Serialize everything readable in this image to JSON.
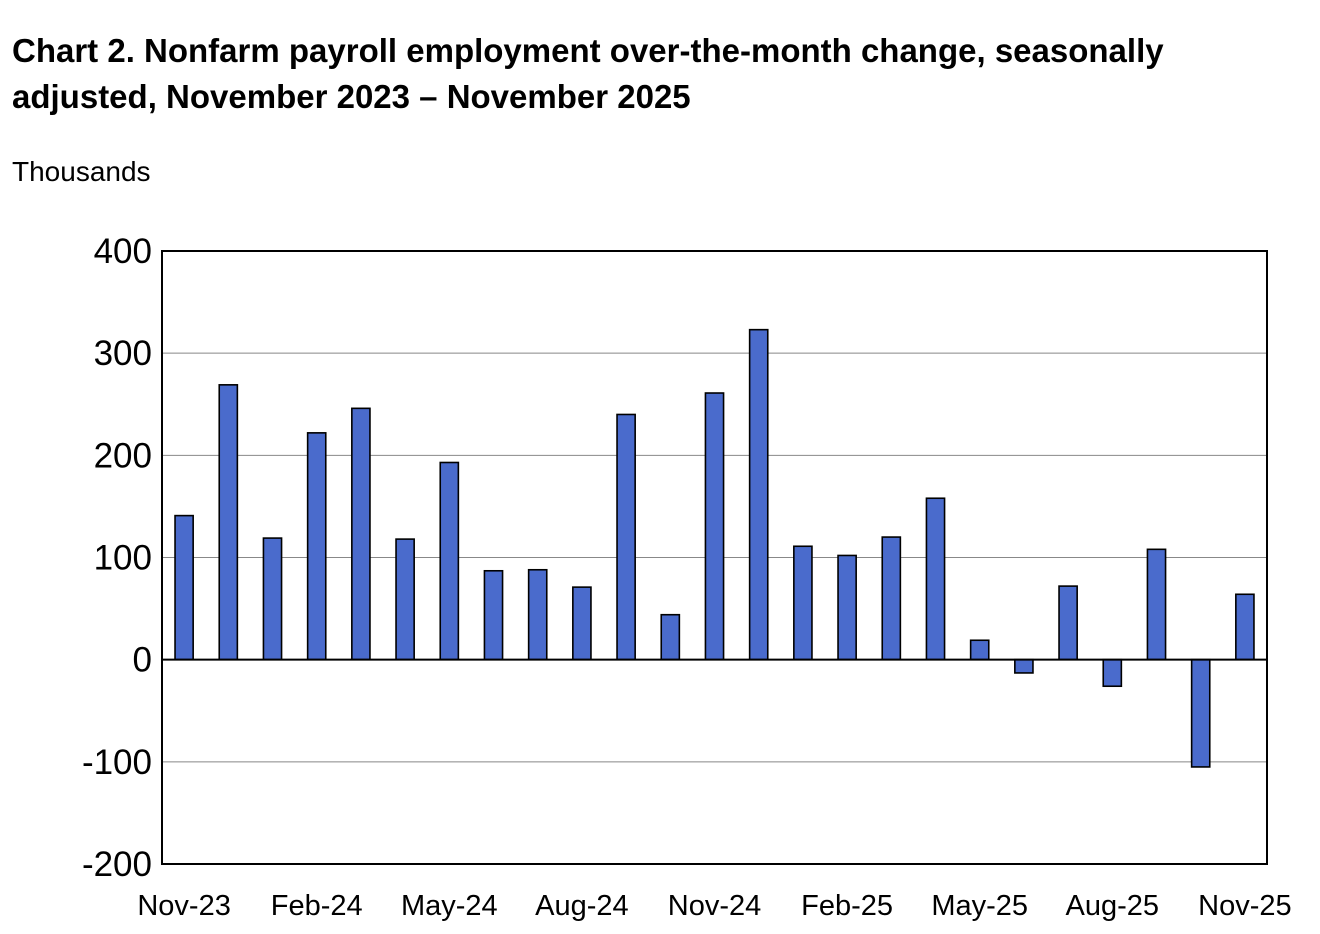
{
  "chart_data": {
    "type": "bar",
    "title": "Chart 2. Nonfarm payroll employment over-the-month change, seasonally adjusted, November 2023 – November 2025",
    "ylabel": "Thousands",
    "xlabel": "",
    "ylim": [
      -200,
      400
    ],
    "yticks": [
      400,
      300,
      200,
      100,
      0,
      -100,
      -200
    ],
    "ytick_labels": [
      "400",
      "300",
      "200",
      "100",
      "0",
      "-100",
      "-200"
    ],
    "categories": [
      "Nov-23",
      "Dec-23",
      "Jan-24",
      "Feb-24",
      "Mar-24",
      "Apr-24",
      "May-24",
      "Jun-24",
      "Jul-24",
      "Aug-24",
      "Sep-24",
      "Oct-24",
      "Nov-24",
      "Dec-24",
      "Jan-25",
      "Feb-25",
      "Mar-25",
      "Apr-25",
      "May-25",
      "Jun-25",
      "Jul-25",
      "Aug-25",
      "Sep-25",
      "Oct-25",
      "Nov-25"
    ],
    "values": [
      141,
      269,
      119,
      222,
      246,
      118,
      193,
      87,
      88,
      71,
      240,
      44,
      261,
      323,
      111,
      102,
      120,
      158,
      19,
      -13,
      72,
      -26,
      108,
      -105,
      64
    ],
    "xtick_labels": [
      "Nov-23",
      "Feb-24",
      "May-24",
      "Aug-24",
      "Nov-24",
      "Feb-25",
      "May-25",
      "Aug-25",
      "Nov-25"
    ],
    "xtick_indices": [
      0,
      3,
      6,
      9,
      12,
      15,
      18,
      21,
      24
    ],
    "grid": true,
    "bar_color": "#4a6bcc",
    "legend": "none"
  }
}
